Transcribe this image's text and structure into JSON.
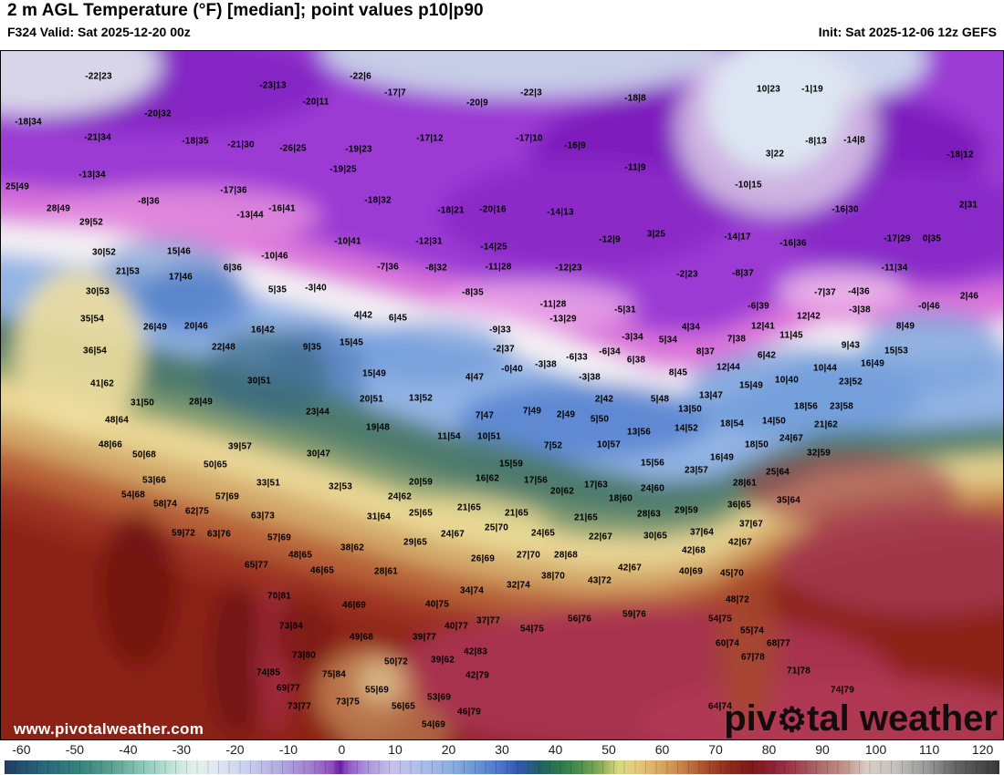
{
  "header": {
    "title": "2 m AGL Temperature (°F) [median]; point values p10|p90",
    "valid": "F324 Valid: Sat 2025-12-20 00z",
    "init": "Init: Sat 2025-12-06 12z GEFS"
  },
  "watermarks": {
    "url": "www.pivotalweather.com",
    "logo_part1": "piv",
    "logo_gear": "⚙",
    "logo_part2": "tal weather"
  },
  "colorbar": {
    "range": [
      -64,
      124
    ],
    "ticks": [
      -60,
      -50,
      -40,
      -30,
      -20,
      -10,
      0,
      10,
      20,
      30,
      40,
      50,
      60,
      70,
      80,
      90,
      100,
      110,
      120
    ],
    "stops": [
      [
        -64,
        "#1d3e63"
      ],
      [
        -57,
        "#27657a"
      ],
      [
        -50,
        "#35827e"
      ],
      [
        -44,
        "#58a08e"
      ],
      [
        -38,
        "#8cc6b8"
      ],
      [
        -32,
        "#c0e4d9"
      ],
      [
        -28,
        "#e2f1eb"
      ],
      [
        -24,
        "#dfe7f4"
      ],
      [
        -18,
        "#c8cfee"
      ],
      [
        -12,
        "#b2abdf"
      ],
      [
        -6,
        "#a07dd0"
      ],
      [
        -2,
        "#8f4cc0"
      ],
      [
        -0.5,
        "#661da4"
      ],
      [
        0.5,
        "#8b4ec6"
      ],
      [
        4,
        "#a98ed8"
      ],
      [
        9,
        "#c6c0ea"
      ],
      [
        14,
        "#b0c0ea"
      ],
      [
        20,
        "#8fb0e2"
      ],
      [
        26,
        "#6390d4"
      ],
      [
        30,
        "#4a74c6"
      ],
      [
        33,
        "#3058b4"
      ],
      [
        37,
        "#226066"
      ],
      [
        41,
        "#2d7a4a"
      ],
      [
        45,
        "#4f9150"
      ],
      [
        49,
        "#8fb05c"
      ],
      [
        52,
        "#d8d97c"
      ],
      [
        55,
        "#e5cd7e"
      ],
      [
        59,
        "#dcae66"
      ],
      [
        63,
        "#cd8d50"
      ],
      [
        66,
        "#bc6a3c"
      ],
      [
        69,
        "#a64a2a"
      ],
      [
        73,
        "#8d2a1b"
      ],
      [
        77,
        "#7d1a18"
      ],
      [
        81,
        "#8f2133"
      ],
      [
        85,
        "#9c3a4c"
      ],
      [
        90,
        "#ab6a66"
      ],
      [
        95,
        "#c1968a"
      ],
      [
        99,
        "#d9cdc5"
      ],
      [
        104,
        "#c6c2bf"
      ],
      [
        110,
        "#9b9b9b"
      ],
      [
        116,
        "#636363"
      ],
      [
        124,
        "#383838"
      ]
    ]
  },
  "map": {
    "field_palette": [
      "#9b3bd4",
      "#7b1cba",
      "#db74da",
      "#f5f2f4",
      "#93b4e4",
      "#4e7a6d",
      "#7e9b70",
      "#ead795",
      "#d3a969",
      "#b86238",
      "#9c3322",
      "#8c2018",
      "#a93254"
    ],
    "points": [
      [
        "-22|23",
        107,
        83
      ],
      [
        "-22|6",
        394,
        83
      ],
      [
        "-23|13",
        298,
        93
      ],
      [
        "10|23",
        841,
        97
      ],
      [
        "-1|19",
        889,
        97
      ],
      [
        "-17|7",
        432,
        101
      ],
      [
        "-22|3",
        581,
        101
      ],
      [
        "-18|8",
        695,
        107
      ],
      [
        "-20|11",
        345,
        111
      ],
      [
        "-20|9",
        522,
        112
      ],
      [
        "-20|32",
        172,
        124
      ],
      [
        "-18|34",
        30,
        133
      ],
      [
        "-21|34",
        106,
        150
      ],
      [
        "-17|12",
        470,
        151
      ],
      [
        "-17|10",
        579,
        151
      ],
      [
        "-18|35",
        213,
        154
      ],
      [
        "-14|8",
        935,
        153
      ],
      [
        "-8|13",
        893,
        154
      ],
      [
        "-21|30",
        263,
        158
      ],
      [
        "-16|9",
        629,
        159
      ],
      [
        "-26|25",
        320,
        162
      ],
      [
        "-19|23",
        392,
        163
      ],
      [
        "3|22",
        848,
        168
      ],
      [
        "-18|12",
        1051,
        169
      ],
      [
        "-11|9",
        695,
        183
      ],
      [
        "-19|25",
        375,
        185
      ],
      [
        "-13|34",
        100,
        191
      ],
      [
        "-10|15",
        819,
        202
      ],
      [
        "25|49",
        18,
        204
      ],
      [
        "-17|36",
        255,
        208
      ],
      [
        "-18|32",
        413,
        219
      ],
      [
        "-8|36",
        162,
        220
      ],
      [
        "2|31",
        1060,
        224
      ],
      [
        "28|49",
        63,
        228
      ],
      [
        "-16|41",
        308,
        228
      ],
      [
        "-16|30",
        925,
        229
      ],
      [
        "-20|16",
        539,
        229
      ],
      [
        "-18|21",
        493,
        230
      ],
      [
        "-14|13",
        613,
        232
      ],
      [
        "-13|44",
        273,
        235
      ],
      [
        "29|52",
        99,
        243
      ],
      [
        "3|25",
        718,
        256
      ],
      [
        "-14|17",
        807,
        259
      ],
      [
        "-12|9",
        667,
        262
      ],
      [
        "-17|29",
        982,
        261
      ],
      [
        "0|35",
        1020,
        261
      ],
      [
        "-10|41",
        380,
        264
      ],
      [
        "-12|31",
        469,
        264
      ],
      [
        "-16|36",
        868,
        266
      ],
      [
        "-14|25",
        540,
        270
      ],
      [
        "15|46",
        195,
        275
      ],
      [
        "30|52",
        113,
        276
      ],
      [
        "-10|46",
        300,
        280
      ],
      [
        "-7|36",
        424,
        292
      ],
      [
        "-8|32",
        477,
        293
      ],
      [
        "-11|28",
        545,
        292
      ],
      [
        "-12|23",
        622,
        293
      ],
      [
        "6|36",
        254,
        293
      ],
      [
        "-11|34",
        979,
        293
      ],
      [
        "21|53",
        139,
        297
      ],
      [
        "-8|37",
        813,
        299
      ],
      [
        "-2|23",
        752,
        300
      ],
      [
        "17|46",
        197,
        303
      ],
      [
        "30|53",
        106,
        319
      ],
      [
        "-3|40",
        345,
        315
      ],
      [
        "5|35",
        303,
        317
      ],
      [
        "-4|36",
        940,
        319
      ],
      [
        "-8|35",
        517,
        320
      ],
      [
        "-7|37",
        903,
        320
      ],
      [
        "2|46",
        1061,
        324
      ],
      [
        "-11|28",
        605,
        333
      ],
      [
        "-6|39",
        830,
        335
      ],
      [
        "-0|46",
        1017,
        335
      ],
      [
        "-5|31",
        684,
        339
      ],
      [
        "-3|38",
        941,
        339
      ],
      [
        "4|42",
        397,
        345
      ],
      [
        "12|42",
        885,
        346
      ],
      [
        "6|45",
        435,
        348
      ],
      [
        "-13|29",
        616,
        349
      ],
      [
        "35|54",
        100,
        349
      ],
      [
        "20|46",
        214,
        357
      ],
      [
        "12|41",
        835,
        357
      ],
      [
        "8|49",
        991,
        357
      ],
      [
        "26|49",
        169,
        358
      ],
      [
        "4|34",
        756,
        358
      ],
      [
        "16|42",
        287,
        361
      ],
      [
        "-9|33",
        547,
        361
      ],
      [
        "11|45",
        866,
        367
      ],
      [
        "-3|34",
        692,
        369
      ],
      [
        "7|38",
        806,
        371
      ],
      [
        "5|34",
        731,
        372
      ],
      [
        "15|45",
        384,
        375
      ],
      [
        "9|43",
        931,
        378
      ],
      [
        "22|48",
        244,
        380
      ],
      [
        "9|35",
        341,
        380
      ],
      [
        "-2|37",
        551,
        382
      ],
      [
        "36|54",
        103,
        384
      ],
      [
        "15|53",
        981,
        384
      ],
      [
        "8|37",
        772,
        385
      ],
      [
        "-6|34",
        667,
        385
      ],
      [
        "6|42",
        839,
        389
      ],
      [
        "-6|33",
        631,
        391
      ],
      [
        "6|38",
        696,
        394
      ],
      [
        "16|49",
        955,
        398
      ],
      [
        "-3|38",
        597,
        399
      ],
      [
        "12|44",
        797,
        402
      ],
      [
        "10|44",
        903,
        403
      ],
      [
        "-0|40",
        560,
        404
      ],
      [
        "15|49",
        409,
        409
      ],
      [
        "8|45",
        742,
        408
      ],
      [
        "-3|38",
        645,
        413
      ],
      [
        "4|47",
        519,
        413
      ],
      [
        "10|40",
        861,
        416
      ],
      [
        "30|51",
        283,
        417
      ],
      [
        "23|52",
        931,
        418
      ],
      [
        "41|62",
        111,
        420
      ],
      [
        "15|49",
        822,
        422
      ],
      [
        "13|47",
        778,
        433
      ],
      [
        "13|52",
        460,
        436
      ],
      [
        "20|51",
        406,
        437
      ],
      [
        "2|42",
        661,
        437
      ],
      [
        "5|48",
        722,
        437
      ],
      [
        "28|49",
        219,
        440
      ],
      [
        "31|50",
        155,
        441
      ],
      [
        "18|56",
        882,
        445
      ],
      [
        "23|58",
        921,
        445
      ],
      [
        "13|50",
        755,
        448
      ],
      [
        "7|49",
        582,
        450
      ],
      [
        "23|44",
        347,
        451
      ],
      [
        "2|49",
        619,
        454
      ],
      [
        "7|47",
        530,
        455
      ],
      [
        "5|50",
        656,
        459
      ],
      [
        "48|64",
        127,
        460
      ],
      [
        "14|50",
        847,
        461
      ],
      [
        "18|54",
        801,
        464
      ],
      [
        "21|62",
        904,
        465
      ],
      [
        "19|48",
        413,
        468
      ],
      [
        "14|52",
        751,
        469
      ],
      [
        "13|56",
        699,
        473
      ],
      [
        "11|54",
        491,
        478
      ],
      [
        "10|51",
        535,
        478
      ],
      [
        "24|67",
        866,
        480
      ],
      [
        "48|66",
        120,
        487
      ],
      [
        "10|57",
        666,
        487
      ],
      [
        "18|50",
        828,
        487
      ],
      [
        "7|52",
        605,
        488
      ],
      [
        "39|57",
        262,
        489
      ],
      [
        "32|59",
        896,
        496
      ],
      [
        "30|47",
        348,
        497
      ],
      [
        "50|68",
        157,
        498
      ],
      [
        "16|49",
        790,
        501
      ],
      [
        "15|56",
        714,
        507
      ],
      [
        "15|59",
        559,
        508
      ],
      [
        "50|65",
        235,
        509
      ],
      [
        "23|57",
        762,
        515
      ],
      [
        "25|64",
        851,
        517
      ],
      [
        "16|62",
        533,
        524
      ],
      [
        "53|66",
        168,
        526
      ],
      [
        "17|56",
        586,
        526
      ],
      [
        "20|59",
        460,
        528
      ],
      [
        "33|51",
        293,
        529
      ],
      [
        "28|61",
        815,
        529
      ],
      [
        "17|63",
        652,
        531
      ],
      [
        "32|53",
        372,
        533
      ],
      [
        "24|60",
        714,
        535
      ],
      [
        "20|62",
        615,
        538
      ],
      [
        "54|68",
        145,
        542
      ],
      [
        "57|69",
        248,
        544
      ],
      [
        "24|62",
        437,
        544
      ],
      [
        "18|60",
        679,
        546
      ],
      [
        "35|64",
        863,
        548
      ],
      [
        "58|74",
        180,
        552
      ],
      [
        "36|65",
        809,
        553
      ],
      [
        "21|65",
        513,
        556
      ],
      [
        "29|59",
        751,
        559
      ],
      [
        "62|75",
        215,
        560
      ],
      [
        "21|65",
        565,
        562
      ],
      [
        "25|65",
        460,
        562
      ],
      [
        "28|63",
        710,
        563
      ],
      [
        "63|73",
        287,
        565
      ],
      [
        "31|64",
        414,
        566
      ],
      [
        "21|65",
        641,
        567
      ],
      [
        "37|67",
        822,
        574
      ],
      [
        "25|70",
        543,
        578
      ],
      [
        "37|64",
        768,
        583
      ],
      [
        "59|72",
        200,
        584
      ],
      [
        "24|65",
        594,
        584
      ],
      [
        "63|76",
        239,
        585
      ],
      [
        "24|67",
        495,
        585
      ],
      [
        "30|65",
        717,
        587
      ],
      [
        "22|67",
        657,
        588
      ],
      [
        "57|69",
        305,
        589
      ],
      [
        "29|65",
        454,
        594
      ],
      [
        "42|67",
        810,
        594
      ],
      [
        "38|62",
        385,
        600
      ],
      [
        "42|68",
        759,
        603
      ],
      [
        "27|70",
        578,
        608
      ],
      [
        "28|68",
        619,
        608
      ],
      [
        "48|65",
        328,
        608
      ],
      [
        "26|69",
        528,
        612
      ],
      [
        "65|77",
        280,
        619
      ],
      [
        "42|67",
        689,
        622
      ],
      [
        "46|65",
        352,
        625
      ],
      [
        "28|61",
        422,
        626
      ],
      [
        "40|69",
        756,
        626
      ],
      [
        "45|70",
        801,
        628
      ],
      [
        "38|70",
        605,
        631
      ],
      [
        "43|72",
        656,
        636
      ],
      [
        "32|74",
        567,
        641
      ],
      [
        "34|74",
        516,
        647
      ],
      [
        "70|81",
        305,
        653
      ],
      [
        "48|72",
        807,
        657
      ],
      [
        "40|75",
        478,
        662
      ],
      [
        "46|69",
        387,
        663
      ],
      [
        "59|76",
        694,
        673
      ],
      [
        "56|76",
        634,
        678
      ],
      [
        "54|75",
        788,
        678
      ],
      [
        "37|77",
        534,
        680
      ],
      [
        "73|84",
        318,
        686
      ],
      [
        "40|77",
        499,
        686
      ],
      [
        "54|75",
        582,
        689
      ],
      [
        "55|74",
        823,
        691
      ],
      [
        "49|68",
        395,
        698
      ],
      [
        "39|77",
        464,
        698
      ],
      [
        "60|74",
        796,
        705
      ],
      [
        "68|77",
        852,
        705
      ],
      [
        "42|83",
        520,
        714
      ],
      [
        "73|80",
        332,
        718
      ],
      [
        "67|78",
        824,
        720
      ],
      [
        "39|62",
        484,
        723
      ],
      [
        "50|72",
        433,
        725
      ],
      [
        "71|78",
        874,
        735
      ],
      [
        "74|85",
        293,
        737
      ],
      [
        "75|84",
        365,
        739
      ],
      [
        "42|79",
        522,
        740
      ],
      [
        "69|77",
        315,
        754
      ],
      [
        "55|69",
        412,
        756
      ],
      [
        "74|79",
        922,
        756
      ],
      [
        "53|69",
        480,
        764
      ],
      [
        "73|75",
        380,
        769
      ],
      [
        "73|77",
        327,
        774
      ],
      [
        "56|65",
        441,
        774
      ],
      [
        "64|74",
        788,
        774
      ],
      [
        "46|79",
        513,
        780
      ],
      [
        "54|69",
        474,
        794
      ]
    ]
  }
}
